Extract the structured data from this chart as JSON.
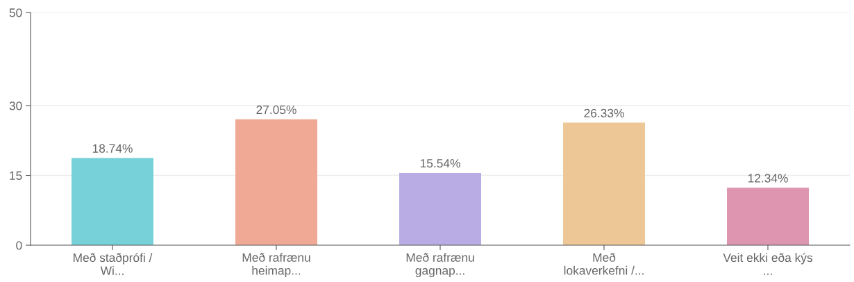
{
  "chart_data": {
    "type": "bar",
    "categories": [
      "Með staðprófi /\nWi...",
      "Með rafrænu\nheimap...",
      "Með rafrænu\ngagnap...",
      "Með\nlokaverkefni /...",
      "Veit ekki eða kýs\n..."
    ],
    "values": [
      18.74,
      27.05,
      15.54,
      26.33,
      12.34
    ],
    "colors": [
      "#76d1d8",
      "#f0a994",
      "#b9abe4",
      "#edc896",
      "#de95b0"
    ],
    "value_labels": [
      "18.74%",
      "27.05%",
      "15.54%",
      "26.33%",
      "12.34%"
    ],
    "ylim": [
      0,
      50
    ],
    "yticks": [
      0,
      15,
      30,
      50
    ],
    "grid": "y",
    "legend": false
  }
}
